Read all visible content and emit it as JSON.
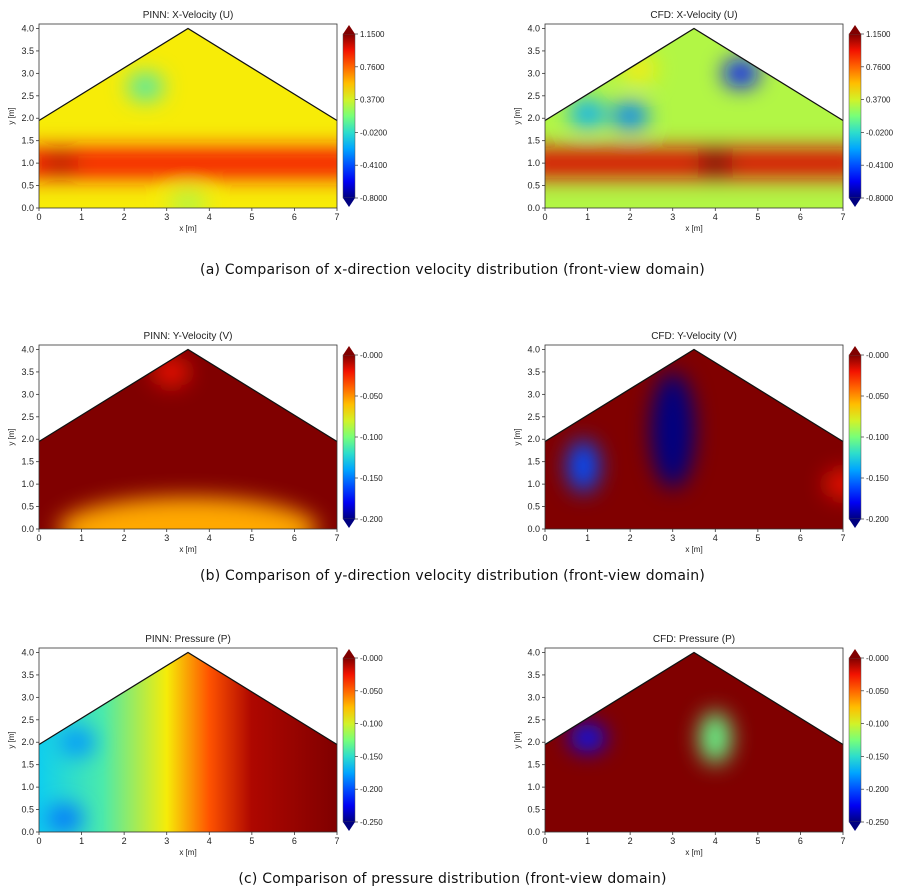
{
  "captions": [
    "(a)  Comparison of x-direction velocity distribution  (front-view domain)",
    "(b)  Comparison of y-direction velocity distribution  (front-view domain)",
    "(c)  Comparison of pressure distribution  (front-view domain)"
  ],
  "chart_data": [
    {
      "type": "heatmap",
      "title": "PINN: X-Velocity (U)",
      "field": "U",
      "source": "PINN",
      "xlabel": "x [m]",
      "ylabel": "y [m]",
      "xlim": [
        0,
        7
      ],
      "ylim": [
        0,
        4.1
      ],
      "xticks": [
        "0",
        "1",
        "2",
        "3",
        "4",
        "5",
        "6",
        "7"
      ],
      "yticks": [
        "0.0",
        "0.5",
        "1.0",
        "1.5",
        "2.0",
        "2.5",
        "3.0",
        "3.5",
        "4.0"
      ],
      "domain_boundary": [
        [
          0,
          0
        ],
        [
          7,
          0
        ],
        [
          7,
          1.95
        ],
        [
          3.5,
          4.0
        ],
        [
          0,
          1.95
        ]
      ],
      "colorbar": {
        "min": -0.8,
        "max": 1.15,
        "ticks": [
          "1.1500",
          "0.7600",
          "0.3700",
          "-0.0200",
          "-0.4100",
          "-0.8000"
        ]
      },
      "base_value": 0.45,
      "features": [
        {
          "x": [
            0,
            7
          ],
          "y": 1.0,
          "value": 0.95,
          "kind": "jet band"
        },
        {
          "x": 0.5,
          "y": 1.0,
          "value": 1.05
        },
        {
          "x": 2.5,
          "y": 2.7,
          "value": 0.05
        },
        {
          "x": 3.5,
          "y": 0.1,
          "value": 0.3
        }
      ]
    },
    {
      "type": "heatmap",
      "title": "CFD: X-Velocity (U)",
      "field": "U",
      "source": "CFD",
      "xlabel": "x [m]",
      "ylabel": "y [m]",
      "xlim": [
        0,
        7
      ],
      "ylim": [
        0,
        4.1
      ],
      "xticks": [
        "0",
        "1",
        "2",
        "3",
        "4",
        "5",
        "6",
        "7"
      ],
      "yticks": [
        "0.0",
        "0.5",
        "1.0",
        "1.5",
        "2.0",
        "2.5",
        "3.0",
        "3.5",
        "4.0"
      ],
      "domain_boundary": [
        [
          0,
          0
        ],
        [
          7,
          0
        ],
        [
          7,
          1.95
        ],
        [
          3.5,
          4.0
        ],
        [
          0,
          1.95
        ]
      ],
      "colorbar": {
        "min": -0.8,
        "max": 1.15,
        "ticks": [
          "1.1500",
          "0.7600",
          "0.3700",
          "-0.0200",
          "-0.4100",
          "-0.8000"
        ]
      },
      "base_value": 0.3,
      "features": [
        {
          "x": [
            0,
            7
          ],
          "y": 1.0,
          "value": 1.0,
          "kind": "jet band"
        },
        {
          "x": 4.0,
          "y": 1.0,
          "value": 1.15
        },
        {
          "x": 1.0,
          "y": 2.1,
          "value": -0.2
        },
        {
          "x": 2.0,
          "y": 2.05,
          "value": -0.3
        },
        {
          "x": 4.6,
          "y": 3.0,
          "value": -0.55
        },
        {
          "x": 2.2,
          "y": 3.1,
          "value": 0.45
        }
      ]
    },
    {
      "type": "heatmap",
      "title": "PINN: Y-Velocity (V)",
      "field": "V",
      "source": "PINN",
      "xlabel": "x [m]",
      "ylabel": "y [m]",
      "xlim": [
        0,
        7
      ],
      "ylim": [
        0,
        4.1
      ],
      "xticks": [
        "0",
        "1",
        "2",
        "3",
        "4",
        "5",
        "6",
        "7"
      ],
      "yticks": [
        "0.0",
        "0.5",
        "1.0",
        "1.5",
        "2.0",
        "2.5",
        "3.0",
        "3.5",
        "4.0"
      ],
      "domain_boundary": [
        [
          0,
          0
        ],
        [
          7,
          0
        ],
        [
          7,
          1.95
        ],
        [
          3.5,
          4.0
        ],
        [
          0,
          1.95
        ]
      ],
      "colorbar": {
        "min": -0.2,
        "max": 0.0,
        "ticks": [
          "-0.000",
          "-0.050",
          "-0.100",
          "-0.150",
          "-0.200"
        ]
      },
      "base_value": 0.0,
      "features": [
        {
          "x": 3.5,
          "y": 0.0,
          "value": -0.055,
          "kind": "bottom bulge"
        },
        {
          "x": 3.1,
          "y": 3.5,
          "value": -0.02
        }
      ]
    },
    {
      "type": "heatmap",
      "title": "CFD: Y-Velocity (V)",
      "field": "V",
      "source": "CFD",
      "xlabel": "x [m]",
      "ylabel": "y [m]",
      "xlim": [
        0,
        7
      ],
      "ylim": [
        0,
        4.1
      ],
      "xticks": [
        "0",
        "1",
        "2",
        "3",
        "4",
        "5",
        "6",
        "7"
      ],
      "yticks": [
        "0.0",
        "0.5",
        "1.0",
        "1.5",
        "2.0",
        "2.5",
        "3.0",
        "3.5",
        "4.0"
      ],
      "domain_boundary": [
        [
          0,
          0
        ],
        [
          7,
          0
        ],
        [
          7,
          1.95
        ],
        [
          3.5,
          4.0
        ],
        [
          0,
          1.95
        ]
      ],
      "colorbar": {
        "min": -0.2,
        "max": 0.0,
        "ticks": [
          "-0.000",
          "-0.050",
          "-0.100",
          "-0.150",
          "-0.200"
        ]
      },
      "base_value": 0.0,
      "features": [
        {
          "x": 3.0,
          "y": 2.2,
          "value": -0.2,
          "kind": "tall lobe"
        },
        {
          "x": 0.9,
          "y": 1.4,
          "value": -0.16,
          "kind": "lobe"
        },
        {
          "x": 7.0,
          "y": 1.0,
          "value": -0.02
        }
      ]
    },
    {
      "type": "heatmap",
      "title": "PINN: Pressure (P)",
      "field": "P",
      "source": "PINN",
      "xlabel": "x [m]",
      "ylabel": "y [m]",
      "xlim": [
        0,
        7
      ],
      "ylim": [
        0,
        4.1
      ],
      "xticks": [
        "0",
        "1",
        "2",
        "3",
        "4",
        "5",
        "6",
        "7"
      ],
      "yticks": [
        "0.0",
        "0.5",
        "1.0",
        "1.5",
        "2.0",
        "2.5",
        "3.0",
        "3.5",
        "4.0"
      ],
      "domain_boundary": [
        [
          0,
          0
        ],
        [
          7,
          0
        ],
        [
          7,
          1.95
        ],
        [
          3.5,
          4.0
        ],
        [
          0,
          1.95
        ]
      ],
      "colorbar": {
        "min": -0.25,
        "max": 0.0,
        "ticks": [
          "-0.000",
          "-0.050",
          "-0.100",
          "-0.150",
          "-0.200",
          "-0.250"
        ]
      },
      "gradient": {
        "x": [
          0,
          1.5,
          3.0,
          4.0,
          5.0,
          7.0
        ],
        "value": [
          -0.16,
          -0.14,
          -0.09,
          -0.045,
          -0.01,
          0.0
        ]
      },
      "features": [
        {
          "x": 0.6,
          "y": 0.3,
          "value": -0.19
        },
        {
          "x": 0.9,
          "y": 2.0,
          "value": -0.18
        }
      ]
    },
    {
      "type": "heatmap",
      "title": "CFD: Pressure (P)",
      "field": "P",
      "source": "CFD",
      "xlabel": "x [m]",
      "ylabel": "y [m]",
      "xlim": [
        0,
        7
      ],
      "ylim": [
        0,
        4.1
      ],
      "xticks": [
        "0",
        "1",
        "2",
        "3",
        "4",
        "5",
        "6",
        "7"
      ],
      "yticks": [
        "0.0",
        "0.5",
        "1.0",
        "1.5",
        "2.0",
        "2.5",
        "3.0",
        "3.5",
        "4.0"
      ],
      "domain_boundary": [
        [
          0,
          0
        ],
        [
          7,
          0
        ],
        [
          7,
          1.95
        ],
        [
          3.5,
          4.0
        ],
        [
          0,
          1.95
        ]
      ],
      "colorbar": {
        "min": -0.25,
        "max": 0.0,
        "ticks": [
          "-0.000",
          "-0.050",
          "-0.100",
          "-0.150",
          "-0.200",
          "-0.250"
        ]
      },
      "base_value": 0.0,
      "features": [
        {
          "x": 1.0,
          "y": 2.1,
          "value": -0.22
        },
        {
          "x": 4.0,
          "y": 2.1,
          "value": -0.13,
          "kind": "lobe"
        }
      ]
    }
  ]
}
